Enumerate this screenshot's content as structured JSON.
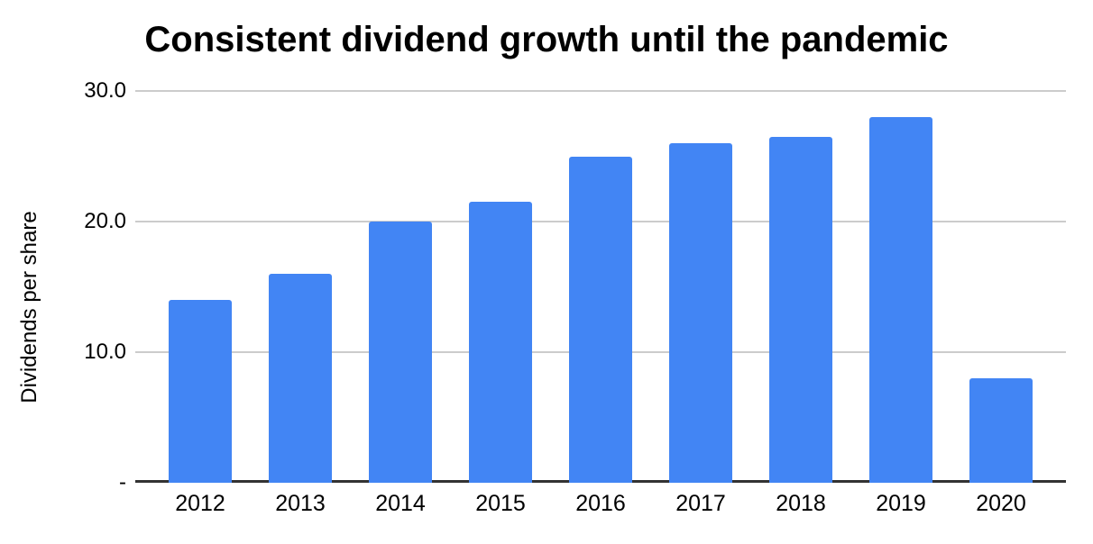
{
  "chart_data": {
    "type": "bar",
    "title": "Consistent dividend growth until the pandemic",
    "xlabel": "",
    "ylabel": "Dividends per share",
    "categories": [
      "2012",
      "2013",
      "2014",
      "2015",
      "2016",
      "2017",
      "2018",
      "2019",
      "2020"
    ],
    "values": [
      14.0,
      16.0,
      20.0,
      21.5,
      25.0,
      26.0,
      26.5,
      28.0,
      8.0
    ],
    "series_name": "Dividends per share",
    "ylim": [
      0,
      30
    ],
    "yticks": [
      {
        "value": 30,
        "label": "30.0"
      },
      {
        "value": 20,
        "label": "20.0"
      },
      {
        "value": 10,
        "label": "10.0"
      },
      {
        "value": 0,
        "label": "-"
      }
    ],
    "grid": true,
    "legend_position": "none",
    "colors": {
      "bar": "#4285F4",
      "gridline": "#cccccc",
      "axis_line": "#333333",
      "text": "#000000",
      "background": "#ffffff"
    }
  }
}
